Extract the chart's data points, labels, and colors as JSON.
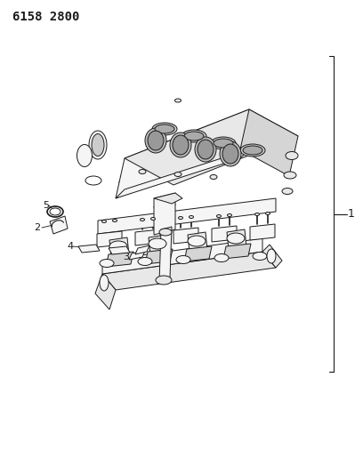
{
  "title": "6158 2800",
  "title_fontsize": 10,
  "title_fontweight": "bold",
  "bg_color": "#ffffff",
  "line_color": "#1a1a1a",
  "fill_light": "#f5f5f5",
  "fill_mid": "#e8e8e8",
  "fill_dark": "#d5d5d5",
  "label_1": "1",
  "label_2": "2",
  "label_3": "3",
  "label_4": "4",
  "label_5": "5",
  "label_fontsize": 8,
  "figsize": [
    4.08,
    5.33
  ],
  "dpi": 100,
  "lw_main": 0.7,
  "lw_thin": 0.5
}
